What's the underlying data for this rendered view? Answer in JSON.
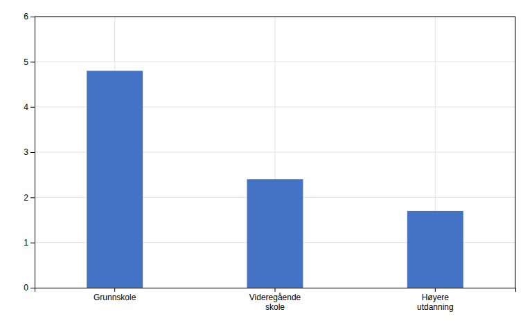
{
  "chart_data": {
    "type": "bar",
    "categories": [
      "Grunnskole",
      "Videregående\nskole",
      "Høyere\nutdanning"
    ],
    "values": [
      4.8,
      2.4,
      1.7
    ],
    "color": "#4472C4",
    "ylim": [
      0,
      6
    ],
    "yticks": [
      0,
      1,
      2,
      3,
      4,
      5,
      6
    ],
    "grid": true
  }
}
